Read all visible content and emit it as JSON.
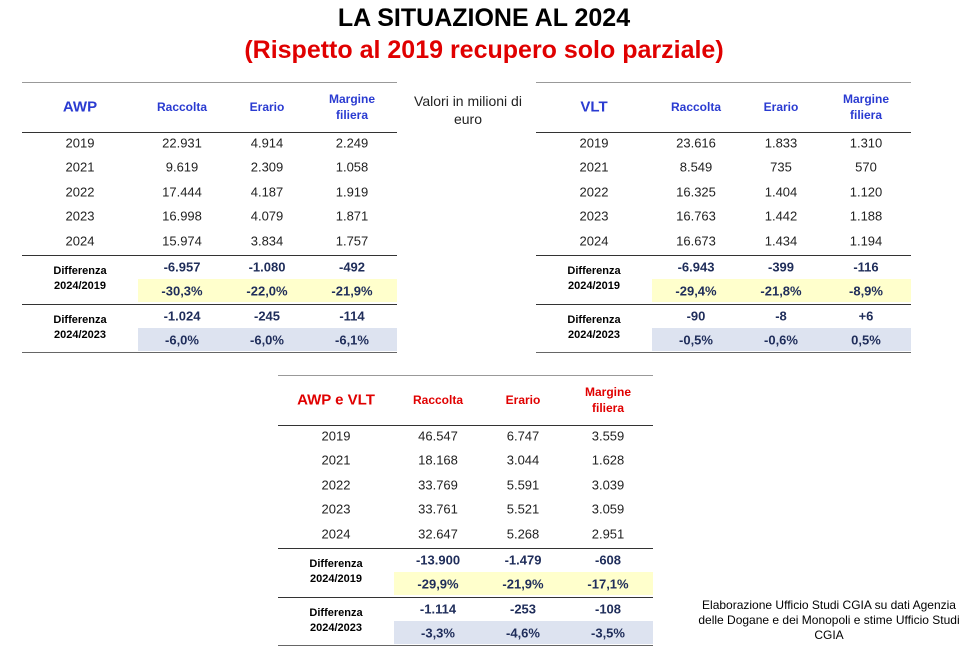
{
  "title": "LA SITUAZIONE AL 2024",
  "subtitle": "(Rispetto al 2019 recupero solo parziale)",
  "unit_note": "Valori in milioni di euro",
  "source_note": "Elaborazione Ufficio Studi CGIA su dati Agenzia delle Dogane e dei Monopoli e stime Ufficio Studi CGIA",
  "tables": [
    {
      "header": [
        "AWP",
        "Raccolta",
        "Erario",
        "Margine filiera"
      ],
      "rows": [
        [
          "2019",
          "22.931",
          "4.914",
          "2.249"
        ],
        [
          "2021",
          "9.619",
          "2.309",
          "1.058"
        ],
        [
          "2022",
          "17.444",
          "4.187",
          "1.919"
        ],
        [
          "2023",
          "16.998",
          "4.079",
          "1.871"
        ],
        [
          "2024",
          "15.974",
          "3.834",
          "1.757"
        ]
      ],
      "diffs": [
        {
          "label": "Differenza 2024/2019",
          "abs": [
            "-6.957",
            "-1.080",
            "-492"
          ],
          "pct": [
            "-30,3%",
            "-22,0%",
            "-21,9%"
          ]
        },
        {
          "label": "Differenza 2024/2023",
          "abs": [
            "-1.024",
            "-245",
            "-114"
          ],
          "pct": [
            "-6,0%",
            "-6,0%",
            "-6,1%"
          ]
        }
      ]
    },
    {
      "header": [
        "VLT",
        "Raccolta",
        "Erario",
        "Margine filiera"
      ],
      "rows": [
        [
          "2019",
          "23.616",
          "1.833",
          "1.310"
        ],
        [
          "2021",
          "8.549",
          "735",
          "570"
        ],
        [
          "2022",
          "16.325",
          "1.404",
          "1.120"
        ],
        [
          "2023",
          "16.763",
          "1.442",
          "1.188"
        ],
        [
          "2024",
          "16.673",
          "1.434",
          "1.194"
        ]
      ],
      "diffs": [
        {
          "label": "Differenza 2024/2019",
          "abs": [
            "-6.943",
            "-399",
            "-116"
          ],
          "pct": [
            "-29,4%",
            "-21,8%",
            "-8,9%"
          ]
        },
        {
          "label": "Differenza 2024/2023",
          "abs": [
            "-90",
            "-8",
            "+6"
          ],
          "pct": [
            "-0,5%",
            "-0,6%",
            "0,5%"
          ]
        }
      ]
    },
    {
      "header": [
        "AWP e VLT",
        "Raccolta",
        "Erario",
        "Margine filiera"
      ],
      "rows": [
        [
          "2019",
          "46.547",
          "6.747",
          "3.559"
        ],
        [
          "2021",
          "18.168",
          "3.044",
          "1.628"
        ],
        [
          "2022",
          "33.769",
          "5.591",
          "3.039"
        ],
        [
          "2023",
          "33.761",
          "5.521",
          "3.059"
        ],
        [
          "2024",
          "32.647",
          "5.268",
          "2.951"
        ]
      ],
      "diffs": [
        {
          "label": "Differenza 2024/2019",
          "abs": [
            "-13.900",
            "-1.479",
            "-608"
          ],
          "pct": [
            "-29,9%",
            "-21,9%",
            "-17,1%"
          ]
        },
        {
          "label": "Differenza 2024/2023",
          "abs": [
            "-1.114",
            "-253",
            "-108"
          ],
          "pct": [
            "-3,3%",
            "-4,6%",
            "-3,5%"
          ]
        }
      ]
    }
  ]
}
